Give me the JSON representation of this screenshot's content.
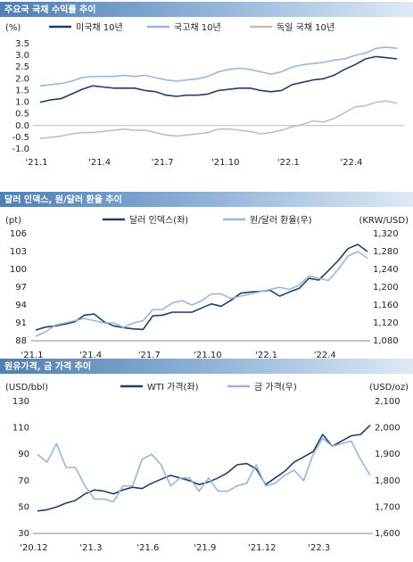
{
  "chart_data": [
    {
      "type": "line",
      "title": "주요국 국채 수익률 추이",
      "y_label": "(%)",
      "categories": [
        "'21.1",
        null,
        null,
        null,
        null,
        null,
        "'21.4",
        null,
        null,
        null,
        null,
        null,
        "'21.7",
        null,
        null,
        null,
        null,
        null,
        "'21.10",
        null,
        null,
        null,
        null,
        null,
        "'22.1",
        null,
        null,
        null,
        null,
        null,
        "'22.4",
        null,
        null,
        null,
        null
      ],
      "ylim": [
        -1.0,
        3.5
      ],
      "yticks": [
        {
          "value": -1.0,
          "label": "-1.0"
        },
        -0.5,
        {
          "value": 0,
          "label": "0.0"
        },
        0.5,
        {
          "value": 1.0,
          "label": "1.0"
        },
        1.5,
        {
          "value": 2.0,
          "label": "2.0"
        },
        2.5,
        {
          "value": 3.0,
          "label": "3.0"
        },
        3.5
      ],
      "series": [
        {
          "name": "미국채 10년",
          "color": "#1f3f68",
          "values": [
            1.0,
            1.1,
            1.15,
            1.35,
            1.55,
            1.7,
            1.65,
            1.6,
            1.6,
            1.6,
            1.5,
            1.45,
            1.3,
            1.25,
            1.3,
            1.3,
            1.35,
            1.5,
            1.55,
            1.6,
            1.6,
            1.5,
            1.45,
            1.5,
            1.75,
            1.85,
            1.95,
            2.0,
            2.15,
            2.4,
            2.6,
            2.85,
            2.95,
            2.9,
            2.85
          ]
        },
        {
          "name": "국고채 10년",
          "color": "#95b8dc",
          "values": [
            1.7,
            1.75,
            1.8,
            1.9,
            2.05,
            2.1,
            2.1,
            2.1,
            2.15,
            2.1,
            2.15,
            2.05,
            1.95,
            1.9,
            1.95,
            2.0,
            2.1,
            2.3,
            2.4,
            2.45,
            2.4,
            2.3,
            2.2,
            2.3,
            2.5,
            2.6,
            2.65,
            2.7,
            2.8,
            2.85,
            3.0,
            3.1,
            3.3,
            3.35,
            3.3
          ]
        },
        {
          "name": "독일 국채 10년",
          "color": "#bfbfbf",
          "values": [
            -0.55,
            -0.5,
            -0.45,
            -0.35,
            -0.3,
            -0.3,
            -0.25,
            -0.2,
            -0.15,
            -0.2,
            -0.2,
            -0.3,
            -0.4,
            -0.45,
            -0.4,
            -0.35,
            -0.3,
            -0.15,
            -0.15,
            -0.2,
            -0.25,
            -0.35,
            -0.3,
            -0.2,
            -0.05,
            0.05,
            0.2,
            0.15,
            0.3,
            0.55,
            0.8,
            0.85,
            1.0,
            1.05,
            0.95
          ]
        }
      ]
    },
    {
      "type": "line",
      "title": "달러 인덱스, 원/달러 환율 추이",
      "y_label": "(pt)",
      "y2_label": "(KRW/USD)",
      "categories": [
        "'21.1",
        null,
        null,
        null,
        null,
        null,
        "'21.4",
        null,
        null,
        null,
        null,
        null,
        "'21.7",
        null,
        null,
        null,
        null,
        null,
        "'21.10",
        null,
        null,
        null,
        null,
        null,
        "'22.1",
        null,
        null,
        null,
        null,
        null,
        "'22.4",
        null,
        null,
        null,
        null
      ],
      "ylim": [
        88,
        106
      ],
      "yticks": [
        88,
        91,
        94,
        97,
        100,
        103,
        106
      ],
      "y2lim": [
        1080,
        1320
      ],
      "y2ticks": [
        {
          "value": 1080,
          "label": "1,080"
        },
        {
          "value": 1120,
          "label": "1,120"
        },
        {
          "value": 1160,
          "label": "1,160"
        },
        {
          "value": 1200,
          "label": "1,200"
        },
        {
          "value": 1240,
          "label": "1,240"
        },
        {
          "value": 1280,
          "label": "1,280"
        },
        {
          "value": 1320,
          "label": "1,320"
        }
      ],
      "series": [
        {
          "name": "달러 인덱스(좌)",
          "color": "#1f3f68",
          "values": [
            89.8,
            90.3,
            90.5,
            90.8,
            91.2,
            92.3,
            92.5,
            91.2,
            90.5,
            90.2,
            90.0,
            89.9,
            92.2,
            92.3,
            92.8,
            92.8,
            92.8,
            93.5,
            94.2,
            93.8,
            94.8,
            96.0,
            96.2,
            96.3,
            96.5,
            95.5,
            96.2,
            96.8,
            98.5,
            98.2,
            99.8,
            101.5,
            103.5,
            104.2,
            103.0
          ]
        },
        {
          "name": "원/달러 환율(우)",
          "color": "#95b8dc",
          "axis": "y2",
          "values": [
            1090,
            1100,
            1115,
            1120,
            1125,
            1130,
            1125,
            1120,
            1120,
            1110,
            1120,
            1125,
            1150,
            1150,
            1165,
            1170,
            1160,
            1170,
            1185,
            1185,
            1175,
            1180,
            1185,
            1190,
            1195,
            1200,
            1195,
            1205,
            1225,
            1220,
            1215,
            1240,
            1270,
            1280,
            1265
          ]
        }
      ]
    },
    {
      "type": "line",
      "title": "원유가격, 금 가격 추이",
      "y_label": "(USD/bbl)",
      "y2_label": "(USD/oz)",
      "categories": [
        "'20.12",
        null,
        null,
        null,
        null,
        null,
        "'21.3",
        null,
        null,
        null,
        null,
        null,
        "'21.6",
        null,
        null,
        null,
        null,
        null,
        "'21.9",
        null,
        null,
        null,
        null,
        null,
        "'21.12",
        null,
        null,
        null,
        null,
        null,
        "'22.3",
        null,
        null,
        null,
        null,
        null
      ],
      "ylim": [
        30,
        130
      ],
      "yticks": [
        30,
        50,
        70,
        90,
        110,
        130
      ],
      "y2lim": [
        1600,
        2100
      ],
      "y2ticks": [
        {
          "value": 1600,
          "label": "1,600"
        },
        {
          "value": 1700,
          "label": "1,700"
        },
        {
          "value": 1800,
          "label": "1,800"
        },
        {
          "value": 1900,
          "label": "1,900"
        },
        {
          "value": 2000,
          "label": "2,000"
        },
        {
          "value": 2100,
          "label": "2,100"
        }
      ],
      "series": [
        {
          "name": "WTI 가격(좌)",
          "color": "#1f3f68",
          "values": [
            47,
            48,
            50,
            53,
            55,
            60,
            63,
            62,
            60,
            63,
            65,
            64,
            68,
            71,
            74,
            72,
            70,
            67,
            69,
            72,
            76,
            82,
            83,
            79,
            67,
            72,
            77,
            84,
            88,
            92,
            105,
            96,
            100,
            104,
            105,
            112
          ]
        },
        {
          "name": "금 가격(우)",
          "color": "#95b8dc",
          "axis": "y2",
          "values": [
            1900,
            1870,
            1940,
            1850,
            1850,
            1780,
            1730,
            1730,
            1720,
            1780,
            1780,
            1880,
            1900,
            1860,
            1780,
            1810,
            1810,
            1760,
            1810,
            1760,
            1760,
            1780,
            1790,
            1860,
            1780,
            1790,
            1820,
            1840,
            1800,
            1900,
            1960,
            1930,
            1940,
            1950,
            1880,
            1820
          ]
        }
      ]
    }
  ]
}
